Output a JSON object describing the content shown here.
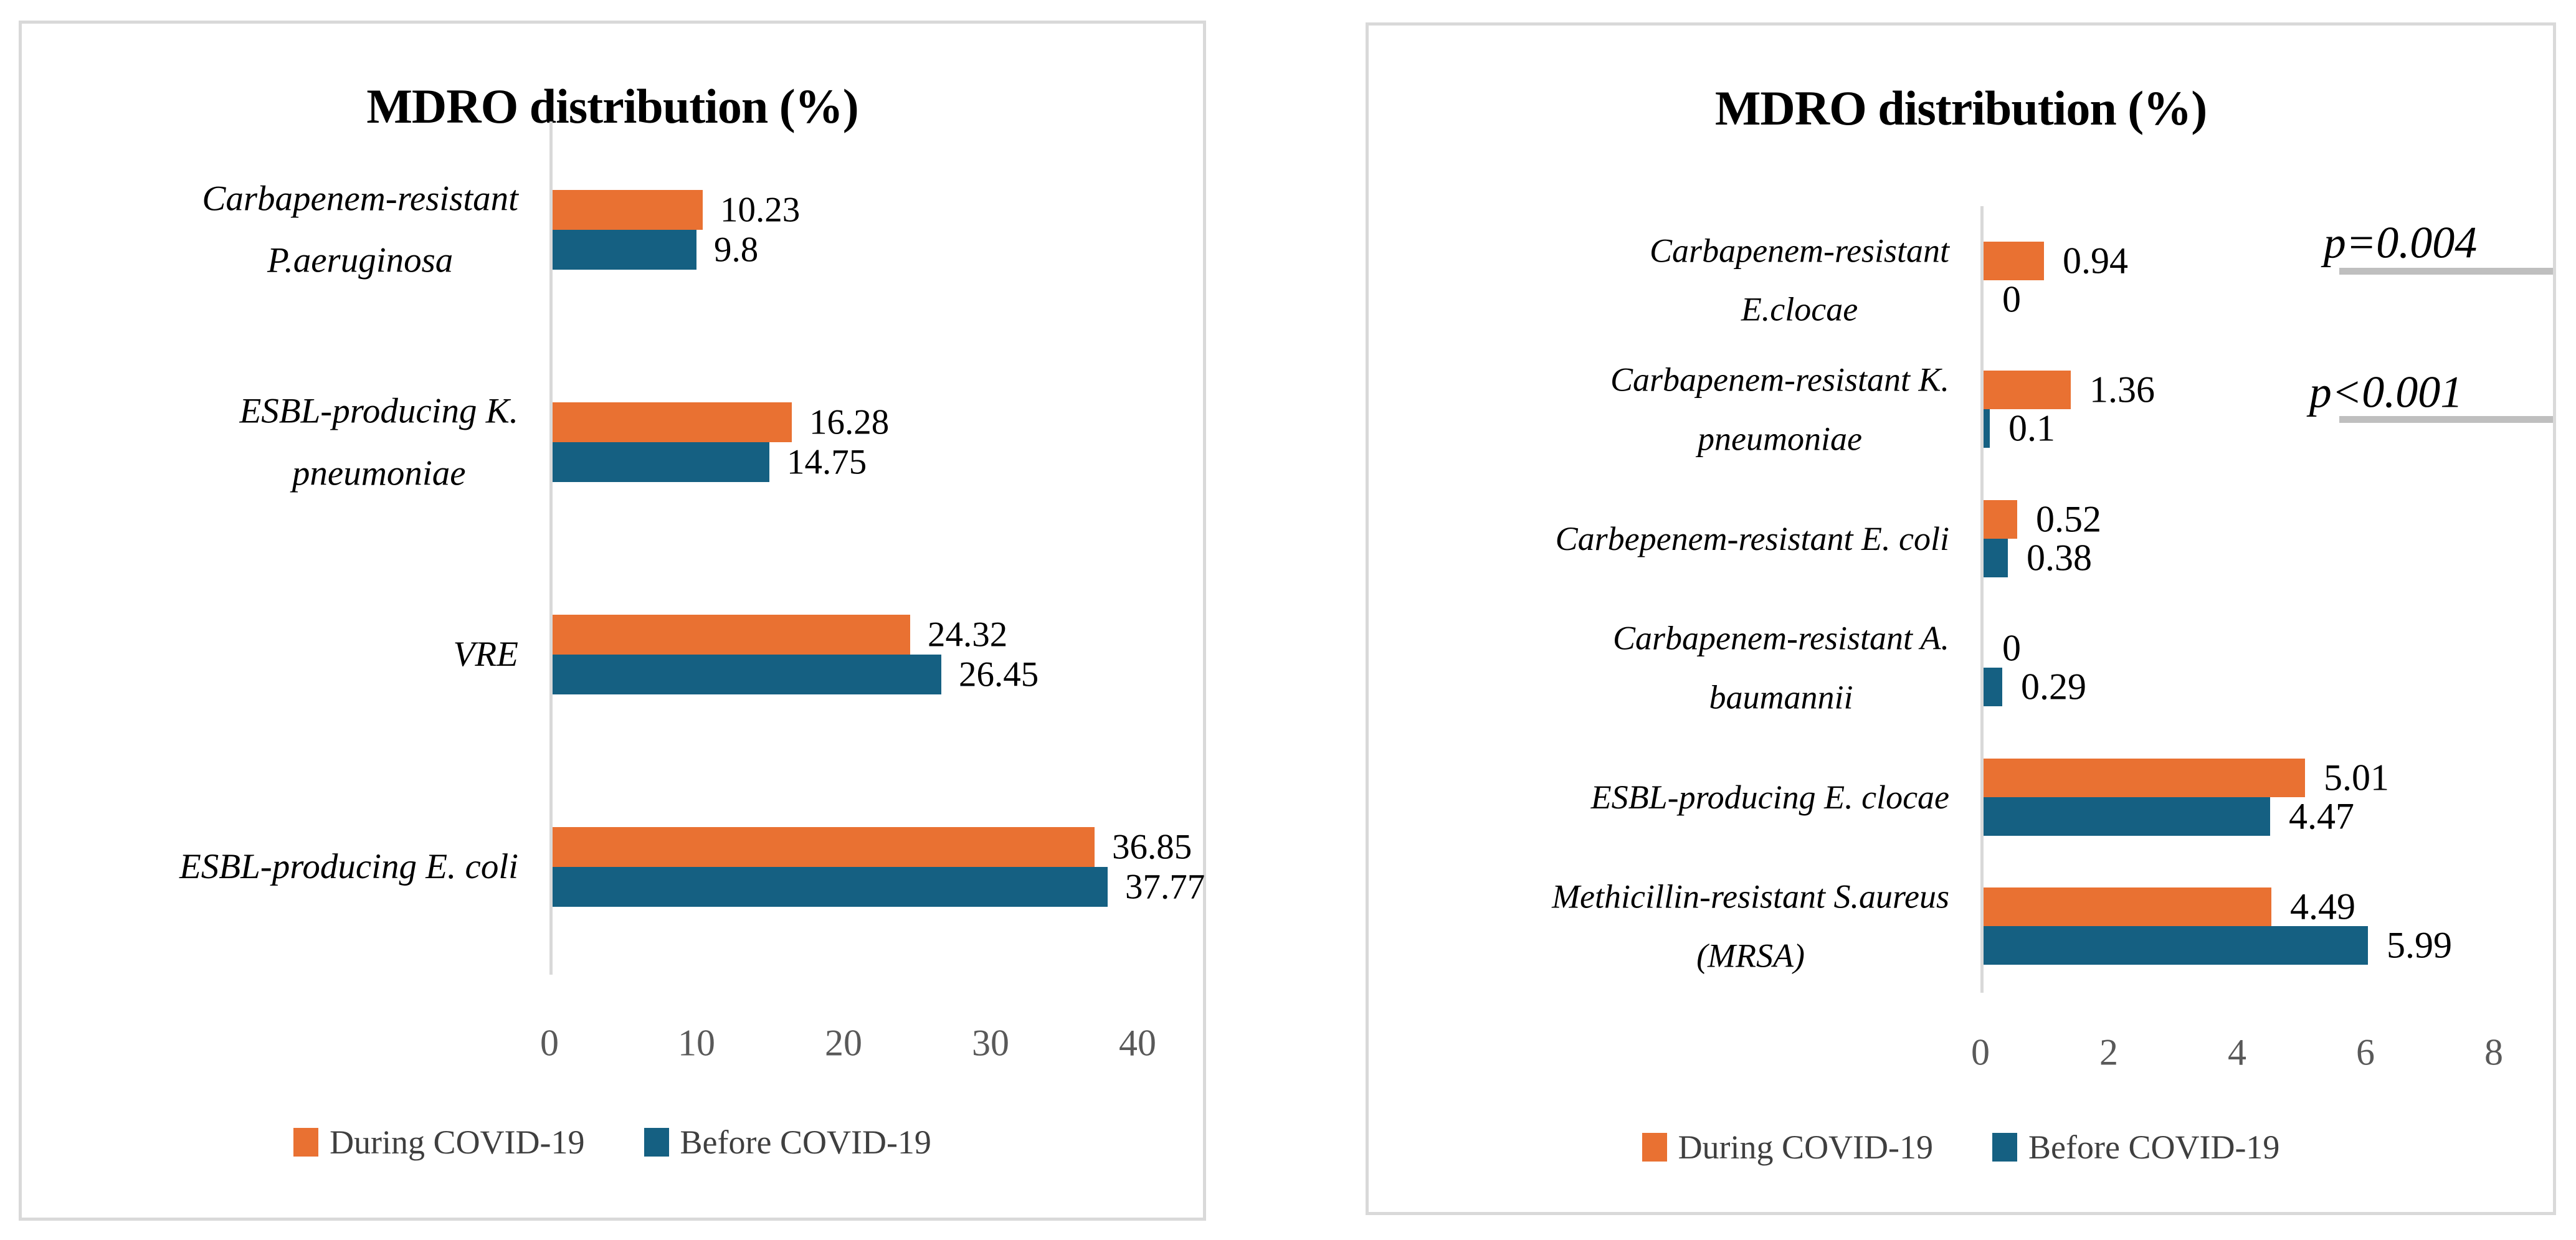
{
  "colors": {
    "during_covid": "#E97132",
    "before_covid": "#156082",
    "panel_border": "#D9D9D9",
    "axis_line": "#D9D9D9",
    "tick_text": "#595959",
    "legend_text": "#3f3f3f",
    "p_underline": "#BFBFBF",
    "value_text": "#000000"
  },
  "chart_data": [
    {
      "type": "bar",
      "orientation": "horizontal",
      "title": "MDRO distribution (%)",
      "categories": [
        "Carbapenem-resistant P.aeruginosa",
        "ESBL-producing K. pneumoniae",
        "VRE",
        "ESBL-producing E. coli"
      ],
      "categories_lines": [
        [
          "Carbapenem-resistant",
          "P.aeruginosa"
        ],
        [
          "ESBL-producing K.",
          "pneumoniae"
        ],
        [
          "VRE"
        ],
        [
          "ESBL-producing E. coli"
        ]
      ],
      "series": [
        {
          "name": "During COVID-19",
          "color": "#E97132",
          "values": [
            10.23,
            16.28,
            24.32,
            36.85
          ],
          "labels": [
            "10.23",
            "16.28",
            "24.32",
            "36.85"
          ]
        },
        {
          "name": "Before COVID-19",
          "color": "#156082",
          "values": [
            9.8,
            14.75,
            26.45,
            37.77
          ],
          "labels": [
            "9.8",
            "14.75",
            "26.45",
            "37.77"
          ]
        }
      ],
      "xlim": [
        0,
        40
      ],
      "xticks": [
        0,
        10,
        20,
        30,
        40
      ],
      "xtick_labels": [
        "0",
        "10",
        "20",
        "30",
        "40"
      ],
      "grid": false,
      "legend_position": "bottom"
    },
    {
      "type": "bar",
      "orientation": "horizontal",
      "title": "MDRO distribution (%)",
      "categories": [
        "Carbapenem-resistant E.clocae",
        "Carbapenem-resistant K. pneumoniae",
        "Carbepenem-resistant E. coli",
        "Carbapenem-resistant A. baumannii",
        "ESBL-producing E. clocae",
        "Methicillin-resistant S.aureus (MRSA)"
      ],
      "categories_lines": [
        [
          "Carbapenem-resistant",
          "E.clocae"
        ],
        [
          "Carbapenem-resistant K.",
          "pneumoniae"
        ],
        [
          "Carbepenem-resistant E. coli"
        ],
        [
          "Carbapenem-resistant A.",
          "baumannii"
        ],
        [
          "ESBL-producing E. clocae"
        ],
        [
          "Methicillin-resistant S.aureus",
          "(MRSA)"
        ]
      ],
      "series": [
        {
          "name": "During COVID-19",
          "color": "#E97132",
          "values": [
            0.94,
            1.36,
            0.52,
            0,
            5.01,
            4.49
          ],
          "labels": [
            "0.94",
            "1.36",
            "0.52",
            "0",
            "5.01",
            "4.49"
          ]
        },
        {
          "name": "Before COVID-19",
          "color": "#156082",
          "values": [
            0,
            0.1,
            0.38,
            0.29,
            4.47,
            5.99
          ],
          "labels": [
            "0",
            "0.1",
            "0.38",
            "0.29",
            "4.47",
            "5.99"
          ]
        }
      ],
      "xlim": [
        0,
        8
      ],
      "xticks": [
        0,
        2,
        4,
        6,
        8
      ],
      "xtick_labels": [
        "0",
        "2",
        "4",
        "6",
        "8"
      ],
      "grid": false,
      "legend_position": "bottom",
      "annotations": [
        {
          "text": "p=0.004"
        },
        {
          "text": "p<0.001"
        }
      ]
    }
  ]
}
